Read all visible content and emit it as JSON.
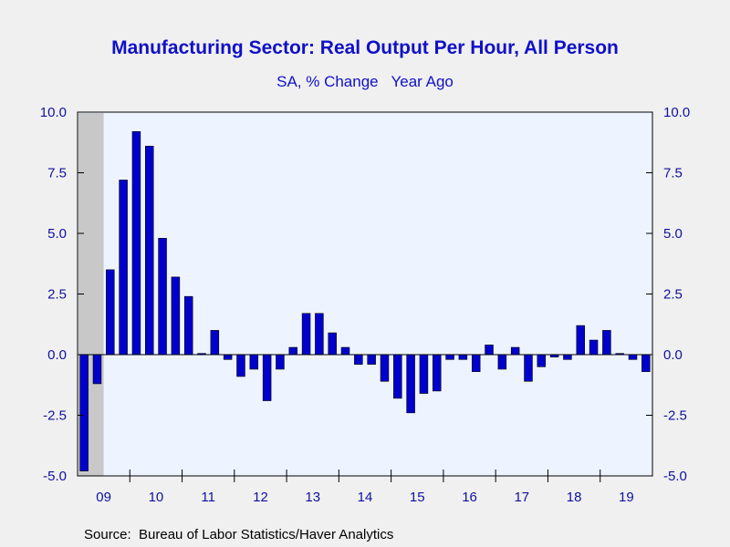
{
  "chart_data": {
    "type": "bar",
    "title": "Manufacturing Sector: Real Output Per Hour, All Person",
    "subtitle": "SA, % Change   Year Ago",
    "source": "Source:  Bureau of Labor Statistics/Haver Analytics",
    "frequency": "quarterly",
    "start": "2009Q1",
    "x_tick_labels": [
      "09",
      "10",
      "11",
      "12",
      "13",
      "14",
      "15",
      "16",
      "17",
      "18",
      "19"
    ],
    "y_tick_labels": [
      "10.0",
      "7.5",
      "5.0",
      "2.5",
      "0.0",
      "-2.5",
      "-5.0"
    ],
    "ylim": [
      -5,
      10
    ],
    "y_ticks": [
      10,
      7.5,
      5,
      2.5,
      0,
      -2.5,
      -5
    ],
    "recession_shading": {
      "start": "2009Q1",
      "end": "2009Q2"
    },
    "values": [
      -4.8,
      -1.2,
      3.5,
      7.2,
      9.2,
      8.6,
      4.8,
      3.2,
      2.4,
      0.05,
      1.0,
      -0.2,
      -0.9,
      -0.6,
      -1.9,
      -0.6,
      0.3,
      1.7,
      1.7,
      0.9,
      0.3,
      -0.4,
      -0.4,
      -1.1,
      -1.8,
      -2.4,
      -1.6,
      -1.5,
      -0.2,
      -0.2,
      -0.7,
      0.4,
      -0.6,
      0.3,
      -1.1,
      -0.5,
      -0.1,
      -0.2,
      1.2,
      0.6,
      1.0,
      0.05,
      -0.2,
      -0.7
    ],
    "colors": {
      "bar": "#0000cc",
      "plot_bg": "#eef4ff",
      "recession": "#c8c8c8",
      "axis": "#000000",
      "text": "#1010c8"
    },
    "grid": false,
    "legend": "none"
  }
}
